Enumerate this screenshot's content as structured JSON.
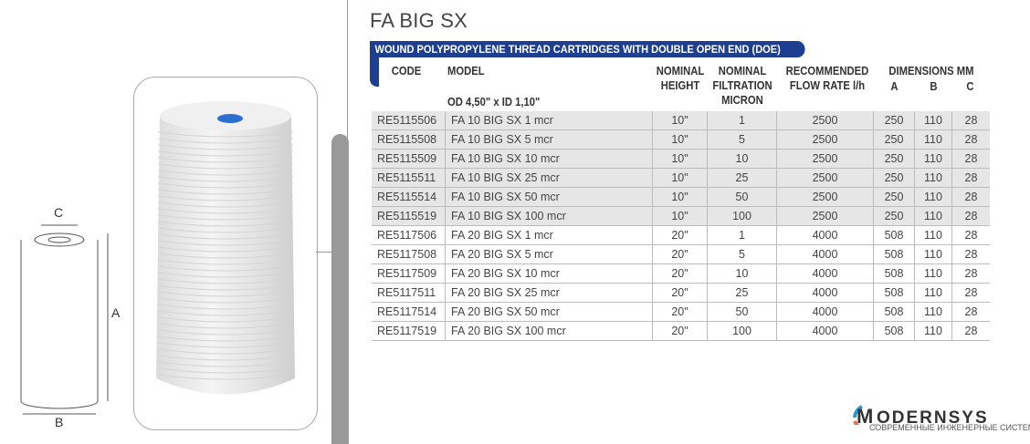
{
  "title": "FA BIG SX",
  "banner": "WOUND POLYPROPYLENE THREAD CARTRIDGES WITH DOUBLE OPEN END (DOE)",
  "headers": {
    "code": "CODE",
    "model": "MODEL",
    "model_sub": "OD 4,50\" x ID 1,10\"",
    "height": "NOMINAL HEIGHT",
    "filtration": "NOMINAL FILTRATION MICRON",
    "flow": "RECOMMENDED FLOW RATE l/h",
    "dimensions": "DIMENSIONS MM",
    "a": "A",
    "b": "B",
    "c": "C"
  },
  "rows": [
    [
      "RE5115506",
      "FA 10 BIG SX 1 mcr",
      "10\"",
      "1",
      "2500",
      "250",
      "110",
      "28"
    ],
    [
      "RE5115508",
      "FA 10 BIG SX 5 mcr",
      "10\"",
      "5",
      "2500",
      "250",
      "110",
      "28"
    ],
    [
      "RE5115509",
      "FA 10 BIG SX 10 mcr",
      "10\"",
      "10",
      "2500",
      "250",
      "110",
      "28"
    ],
    [
      "RE5115511",
      "FA 10 BIG SX 25 mcr",
      "10\"",
      "25",
      "2500",
      "250",
      "110",
      "28"
    ],
    [
      "RE5115514",
      "FA 10 BIG SX 50 mcr",
      "10\"",
      "50",
      "2500",
      "250",
      "110",
      "28"
    ],
    [
      "RE5115519",
      "FA 10 BIG SX 100 mcr",
      "10\"",
      "100",
      "2500",
      "250",
      "110",
      "28"
    ],
    [
      "RE5117506",
      "FA 20 BIG SX 1 mcr",
      "20\"",
      "1",
      "4000",
      "508",
      "110",
      "28"
    ],
    [
      "RE5117508",
      "FA 20 BIG SX 5 mcr",
      "20\"",
      "5",
      "4000",
      "508",
      "110",
      "28"
    ],
    [
      "RE5117509",
      "FA 20 BIG SX 10 mcr",
      "20\"",
      "10",
      "4000",
      "508",
      "110",
      "28"
    ],
    [
      "RE5117511",
      "FA 20 BIG SX 25 mcr",
      "20\"",
      "25",
      "4000",
      "508",
      "110",
      "28"
    ],
    [
      "RE5117514",
      "FA 20 BIG SX 50 mcr",
      "20\"",
      "50",
      "4000",
      "508",
      "110",
      "28"
    ],
    [
      "RE5117519",
      "FA 20 BIG SX 100 mcr",
      "20\"",
      "100",
      "4000",
      "508",
      "110",
      "28"
    ]
  ],
  "diagram": {
    "a": "A",
    "b": "B",
    "c": "C"
  },
  "logo": {
    "name": "MODERNSYS",
    "tagline": "СОВРЕМЕННЫЕ ИНЖЕНЕРНЫЕ СИСТЕМЫ"
  },
  "colors": {
    "banner": "#1e3f8f",
    "logo_blue": "#2a9ad6",
    "logo_orange": "#e8743b"
  }
}
